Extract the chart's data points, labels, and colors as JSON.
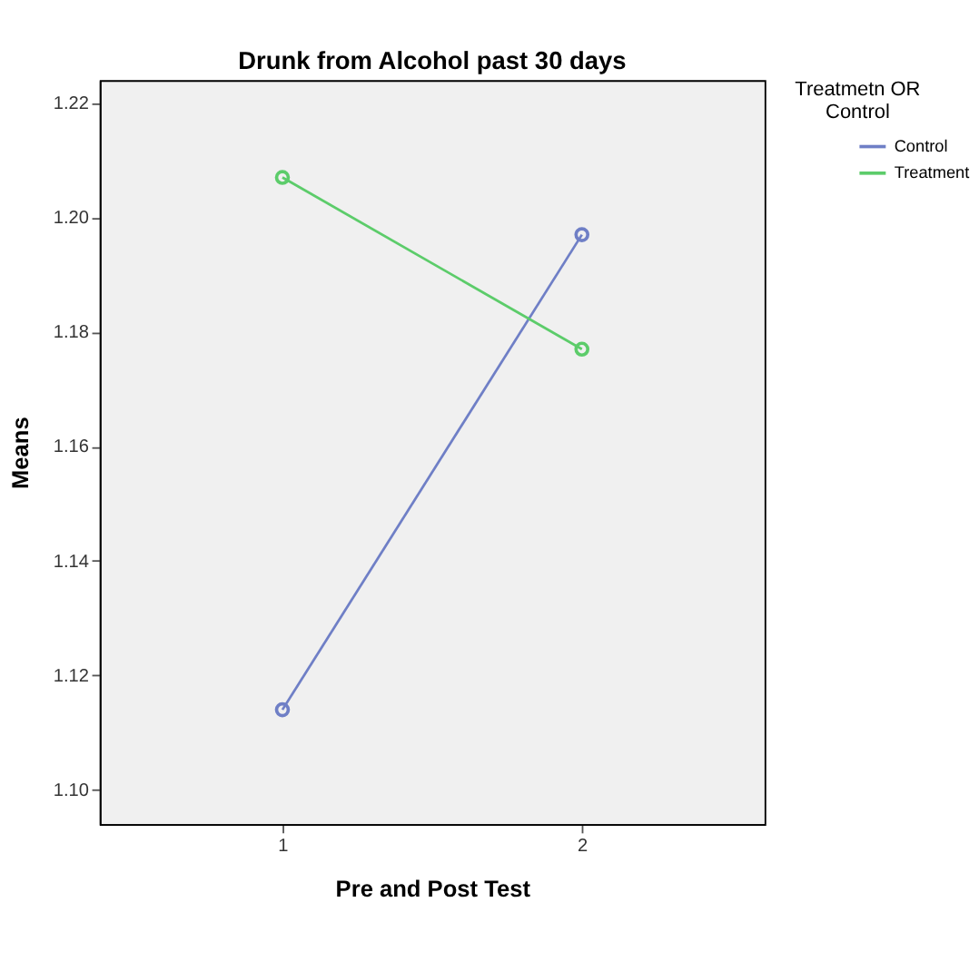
{
  "chart_data": {
    "type": "line",
    "title": "Drunk from Alcohol past 30 days",
    "xlabel": "Pre and Post Test",
    "ylabel": "Means",
    "legend_title": "Treatmetn OR Control",
    "x": [
      1,
      2
    ],
    "series": [
      {
        "name": "Control",
        "color": "#6f7fc6",
        "values": [
          1.114,
          1.197
        ]
      },
      {
        "name": "Treatment",
        "color": "#5ccc6a",
        "values": [
          1.207,
          1.177
        ]
      }
    ],
    "xlim": [
      0.39,
      2.61
    ],
    "xticks": [
      1,
      2
    ],
    "ylim": [
      1.094,
      1.224
    ],
    "yticks": [
      {
        "value": 1.1,
        "label": "1.10"
      },
      1.12,
      1.14,
      1.16,
      1.18,
      {
        "value": 1.2,
        "label": "1.20"
      },
      1.22
    ],
    "grid": false,
    "legend": "top right",
    "marker": "circle",
    "line_style": "solid"
  }
}
